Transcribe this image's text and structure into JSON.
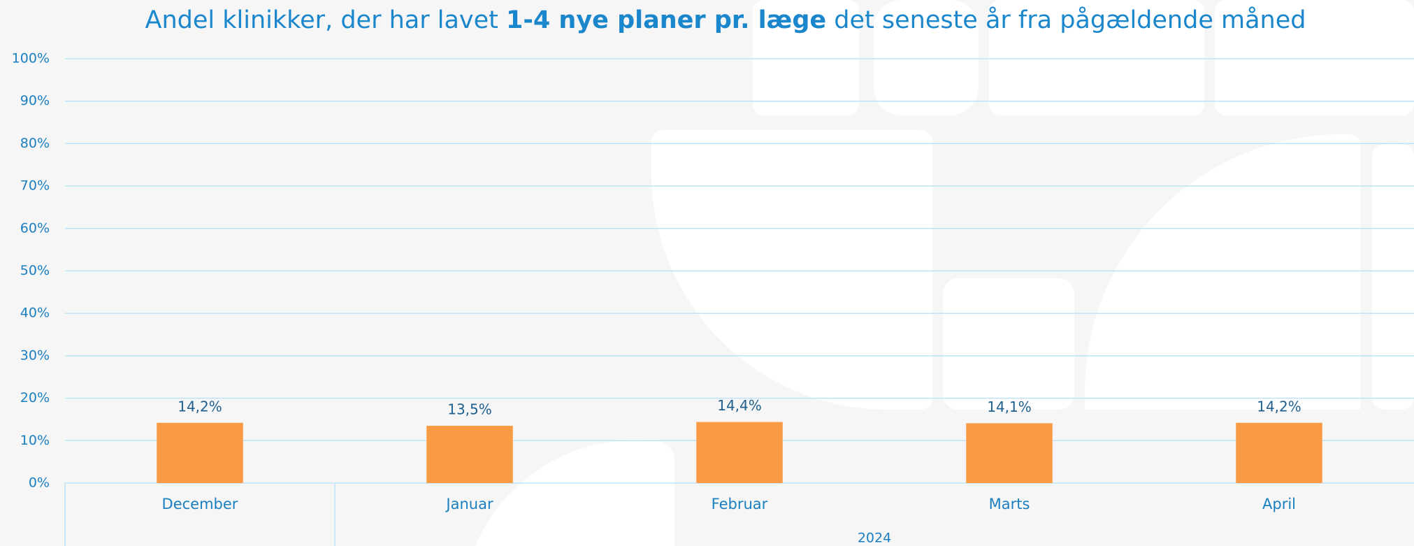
{
  "chart_data": {
    "type": "bar",
    "title": [
      "Andel klinikker, der har lavet ",
      "1-4 nye planer pr. læge",
      " det seneste år fra pågældende måned"
    ],
    "categories": [
      "December",
      "Januar",
      "Februar",
      "Marts",
      "April"
    ],
    "group_label": "2024",
    "values": [
      14.2,
      13.5,
      14.4,
      14.1,
      14.2
    ],
    "value_labels": [
      "14,2%",
      "13,5%",
      "14,4%",
      "14,1%",
      "14,2%"
    ],
    "color": "#f99b45",
    "ylim": [
      0,
      100
    ],
    "yticks": [
      {
        "value": 0,
        "label": "0%"
      },
      {
        "value": 10,
        "label": "10%"
      },
      {
        "value": 20,
        "label": "20%"
      },
      {
        "value": 30,
        "label": "30%"
      },
      {
        "value": 40,
        "label": "40%"
      },
      {
        "value": 50,
        "label": "50%"
      },
      {
        "value": 60,
        "label": "60%"
      },
      {
        "value": 70,
        "label": "70%"
      },
      {
        "value": 80,
        "label": "80%"
      },
      {
        "value": 90,
        "label": "90%"
      },
      {
        "value": 100,
        "label": "100%"
      }
    ],
    "grid": true
  }
}
